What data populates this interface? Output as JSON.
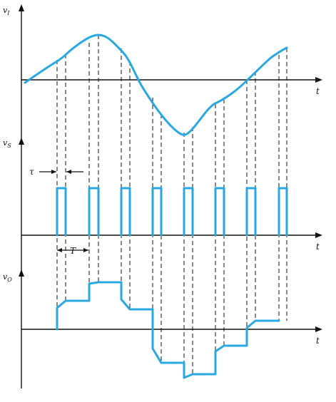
{
  "panels": [
    {
      "id": "input-signal",
      "label_main": "v",
      "label_sub": "I",
      "axis_label": "t"
    },
    {
      "id": "sampling-signal",
      "label_main": "v",
      "label_sub": "S",
      "axis_label": "t",
      "annotations": {
        "tau": "τ",
        "period": "T"
      }
    },
    {
      "id": "output-signal",
      "label_main": "v",
      "label_sub": "O",
      "axis_label": "t"
    }
  ],
  "colors": {
    "signal": "#29a8e0",
    "axis": "#111111"
  }
}
